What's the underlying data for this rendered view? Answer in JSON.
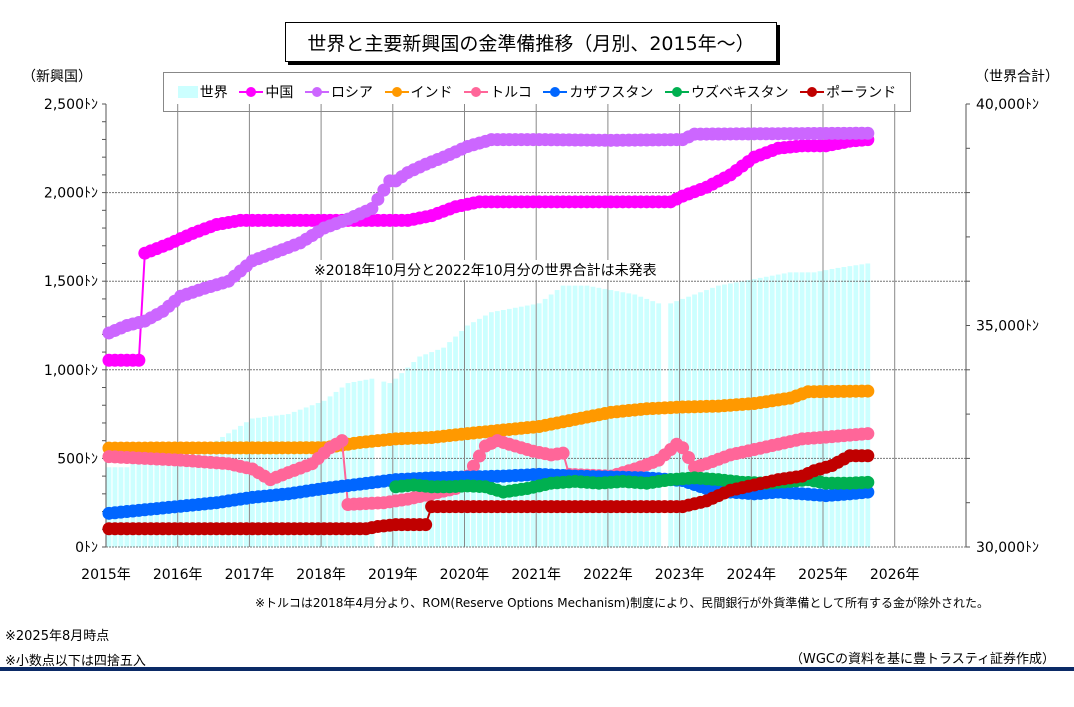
{
  "title": "世界と主要新興国の金準備推移（月別、2015年～）",
  "notes": {
    "missing_world": "※2018年10月分と2022年10月分の世界合計は未発表",
    "turkey": "※トルコは2018年4月分より、ROM(Reserve Options Mechanism)制度により、民間銀行が外貨準備として所有する金が除外された。",
    "as_of": "※2025年8月時点",
    "rounding": "※小数点以下は四捨五入",
    "source": "（WGCの資料を基に豊トラスティ証券作成）"
  },
  "chart_data": {
    "type": "line",
    "title": "世界と主要新興国の金準備推移（月別、2015年～）",
    "xlabel": "",
    "ylabel_left": "（新興国）",
    "ylabel_right": "（世界合計）",
    "x_unit": "month index from Jan 2015",
    "x_range": [
      0,
      132
    ],
    "ylim_left": [
      0,
      2500
    ],
    "ylim_right": [
      30000,
      40000
    ],
    "y_ticks_left": [
      "0ﾄﾝ",
      "500ﾄﾝ",
      "1,000ﾄﾝ",
      "1,500ﾄﾝ",
      "2,000ﾄﾝ",
      "2,500ﾄﾝ"
    ],
    "y_ticks_left_values": [
      0,
      500,
      1000,
      1500,
      2000,
      2500
    ],
    "y_ticks_right": [
      "30,000ﾄﾝ",
      "35,000ﾄﾝ",
      "40,000ﾄﾝ"
    ],
    "y_ticks_right_values": [
      30000,
      35000,
      40000
    ],
    "x_ticks": [
      "2015年",
      "2016年",
      "2017年",
      "2018年",
      "2019年",
      "2020年",
      "2021年",
      "2022年",
      "2023年",
      "2024年",
      "2025年",
      "2026年"
    ],
    "grid": true,
    "legend_position": "top",
    "last_month_index": 127,
    "bars": {
      "name": "世界",
      "color": "#ccffff",
      "axis": "right",
      "missing_months": [
        45,
        93
      ],
      "anchors": [
        [
          0,
          31800
        ],
        [
          3,
          31800
        ],
        [
          4,
          32200
        ],
        [
          10,
          32100
        ],
        [
          18,
          32400
        ],
        [
          24,
          32900
        ],
        [
          30,
          33000
        ],
        [
          36,
          33300
        ],
        [
          40,
          33700
        ],
        [
          44,
          33800
        ],
        [
          47,
          33700
        ],
        [
          48,
          33800
        ],
        [
          52,
          34300
        ],
        [
          56,
          34500
        ],
        [
          60,
          35000
        ],
        [
          64,
          35300
        ],
        [
          68,
          35400
        ],
        [
          72,
          35500
        ],
        [
          76,
          35900
        ],
        [
          80,
          35900
        ],
        [
          84,
          35800
        ],
        [
          88,
          35700
        ],
        [
          92,
          35500
        ],
        [
          94,
          35500
        ],
        [
          98,
          35700
        ],
        [
          102,
          35900
        ],
        [
          106,
          36000
        ],
        [
          110,
          36100
        ],
        [
          114,
          36200
        ],
        [
          118,
          36200
        ],
        [
          122,
          36300
        ],
        [
          127,
          36400
        ]
      ]
    },
    "series": [
      {
        "name": "中国",
        "color": "#ff00ff",
        "anchors": [
          [
            0,
            1054
          ],
          [
            5,
            1054
          ],
          [
            6,
            1658
          ],
          [
            10,
            1710
          ],
          [
            14,
            1770
          ],
          [
            18,
            1820
          ],
          [
            22,
            1843
          ],
          [
            50,
            1843
          ],
          [
            54,
            1870
          ],
          [
            58,
            1920
          ],
          [
            62,
            1948
          ],
          [
            94,
            1948
          ],
          [
            96,
            1980
          ],
          [
            100,
            2030
          ],
          [
            104,
            2100
          ],
          [
            108,
            2200
          ],
          [
            112,
            2250
          ],
          [
            116,
            2264
          ],
          [
            120,
            2264
          ],
          [
            124,
            2290
          ],
          [
            127,
            2299
          ]
        ]
      },
      {
        "name": "ロシア",
        "color": "#cc66ff",
        "anchors": [
          [
            0,
            1208
          ],
          [
            3,
            1250
          ],
          [
            6,
            1275
          ],
          [
            9,
            1330
          ],
          [
            12,
            1415
          ],
          [
            16,
            1460
          ],
          [
            20,
            1500
          ],
          [
            24,
            1615
          ],
          [
            28,
            1665
          ],
          [
            32,
            1716
          ],
          [
            36,
            1800
          ],
          [
            40,
            1850
          ],
          [
            44,
            1910
          ],
          [
            47,
            2066
          ],
          [
            48,
            2066
          ],
          [
            50,
            2113
          ],
          [
            53,
            2160
          ],
          [
            56,
            2200
          ],
          [
            60,
            2260
          ],
          [
            64,
            2299
          ],
          [
            72,
            2299
          ],
          [
            84,
            2295
          ],
          [
            96,
            2299
          ],
          [
            98,
            2330
          ],
          [
            127,
            2335
          ]
        ]
      },
      {
        "name": "インド",
        "color": "#ff9900",
        "anchors": [
          [
            0,
            558
          ],
          [
            36,
            560
          ],
          [
            42,
            590
          ],
          [
            48,
            610
          ],
          [
            54,
            618
          ],
          [
            60,
            640
          ],
          [
            66,
            660
          ],
          [
            72,
            680
          ],
          [
            78,
            720
          ],
          [
            84,
            760
          ],
          [
            90,
            780
          ],
          [
            96,
            790
          ],
          [
            102,
            795
          ],
          [
            108,
            810
          ],
          [
            114,
            840
          ],
          [
            117,
            876
          ],
          [
            127,
            880
          ]
        ]
      },
      {
        "name": "トルコ",
        "color": "#ff6699",
        "anchors": [
          [
            0,
            510
          ],
          [
            6,
            500
          ],
          [
            12,
            490
          ],
          [
            16,
            480
          ],
          [
            20,
            470
          ],
          [
            24,
            440
          ],
          [
            27,
            380
          ],
          [
            30,
            420
          ],
          [
            34,
            470
          ],
          [
            37,
            560
          ],
          [
            39,
            600
          ],
          [
            40,
            240
          ],
          [
            46,
            250
          ],
          [
            50,
            270
          ],
          [
            54,
            300
          ],
          [
            58,
            330
          ],
          [
            60,
            400
          ],
          [
            63,
            570
          ],
          [
            65,
            600
          ],
          [
            68,
            570
          ],
          [
            71,
            540
          ],
          [
            74,
            520
          ],
          [
            76,
            530
          ],
          [
            77,
            410
          ],
          [
            84,
            400
          ],
          [
            88,
            440
          ],
          [
            92,
            490
          ],
          [
            95,
            580
          ],
          [
            96,
            560
          ],
          [
            98,
            450
          ],
          [
            100,
            470
          ],
          [
            104,
            520
          ],
          [
            108,
            550
          ],
          [
            112,
            580
          ],
          [
            116,
            610
          ],
          [
            120,
            620
          ],
          [
            127,
            640
          ]
        ]
      },
      {
        "name": "カザフスタン",
        "color": "#0066ff",
        "anchors": [
          [
            0,
            190
          ],
          [
            6,
            210
          ],
          [
            12,
            230
          ],
          [
            18,
            250
          ],
          [
            24,
            280
          ],
          [
            30,
            300
          ],
          [
            36,
            330
          ],
          [
            42,
            355
          ],
          [
            48,
            380
          ],
          [
            54,
            390
          ],
          [
            60,
            395
          ],
          [
            66,
            400
          ],
          [
            72,
            410
          ],
          [
            78,
            400
          ],
          [
            84,
            395
          ],
          [
            90,
            390
          ],
          [
            96,
            375
          ],
          [
            100,
            330
          ],
          [
            104,
            310
          ],
          [
            108,
            300
          ],
          [
            112,
            310
          ],
          [
            116,
            300
          ],
          [
            120,
            290
          ],
          [
            124,
            300
          ],
          [
            127,
            310
          ]
        ]
      },
      {
        "name": "ウズベキスタン",
        "color": "#00b050",
        "anchors": [
          [
            48,
            340
          ],
          [
            51,
            350
          ],
          [
            54,
            340
          ],
          [
            57,
            340
          ],
          [
            60,
            345
          ],
          [
            63,
            340
          ],
          [
            66,
            310
          ],
          [
            70,
            330
          ],
          [
            74,
            360
          ],
          [
            78,
            370
          ],
          [
            82,
            360
          ],
          [
            86,
            370
          ],
          [
            90,
            360
          ],
          [
            94,
            380
          ],
          [
            98,
            390
          ],
          [
            102,
            380
          ],
          [
            106,
            365
          ],
          [
            110,
            360
          ],
          [
            114,
            370
          ],
          [
            117,
            380
          ],
          [
            120,
            360
          ],
          [
            124,
            360
          ],
          [
            127,
            365
          ]
        ]
      },
      {
        "name": "ポーランド",
        "color": "#c00000",
        "anchors": [
          [
            0,
            103
          ],
          [
            43,
            103
          ],
          [
            45,
            116
          ],
          [
            48,
            126
          ],
          [
            53,
            126
          ],
          [
            54,
            228
          ],
          [
            96,
            228
          ],
          [
            100,
            260
          ],
          [
            104,
            320
          ],
          [
            108,
            350
          ],
          [
            112,
            380
          ],
          [
            116,
            400
          ],
          [
            118,
            430
          ],
          [
            121,
            460
          ],
          [
            124,
            515
          ],
          [
            127,
            515
          ]
        ]
      }
    ]
  }
}
